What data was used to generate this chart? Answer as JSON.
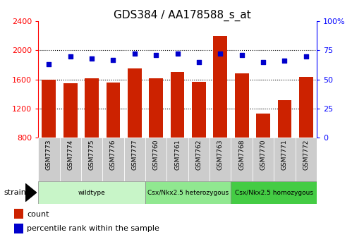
{
  "title": "GDS384 / AA178588_s_at",
  "samples": [
    "GSM7773",
    "GSM7774",
    "GSM7775",
    "GSM7776",
    "GSM7777",
    "GSM7760",
    "GSM7761",
    "GSM7762",
    "GSM7763",
    "GSM7768",
    "GSM7770",
    "GSM7771",
    "GSM7772"
  ],
  "counts": [
    1600,
    1550,
    1620,
    1560,
    1750,
    1620,
    1700,
    1570,
    2200,
    1680,
    1130,
    1310,
    1630
  ],
  "percentiles": [
    63,
    70,
    68,
    67,
    72,
    71,
    72,
    65,
    72,
    71,
    65,
    66,
    70
  ],
  "groups": [
    {
      "label": "wildtype",
      "start": 0,
      "end": 5,
      "color": "#c8f5c8"
    },
    {
      "label": "Csx/Nkx2.5 heterozygous",
      "start": 5,
      "end": 9,
      "color": "#90e890"
    },
    {
      "label": "Csx/Nkx2.5 homozygous",
      "start": 9,
      "end": 13,
      "color": "#44cc44"
    }
  ],
  "bar_color": "#cc2200",
  "scatter_color": "#0000cc",
  "ylim_left": [
    800,
    2400
  ],
  "ylim_right": [
    0,
    100
  ],
  "yticks_left": [
    800,
    1200,
    1600,
    2000,
    2400
  ],
  "yticks_right": [
    0,
    25,
    50,
    75,
    100
  ],
  "grid_yticks": [
    1200,
    1600,
    2000
  ],
  "bar_width": 0.65,
  "background_color": "#ffffff",
  "xticklabel_bg": "#cccccc"
}
